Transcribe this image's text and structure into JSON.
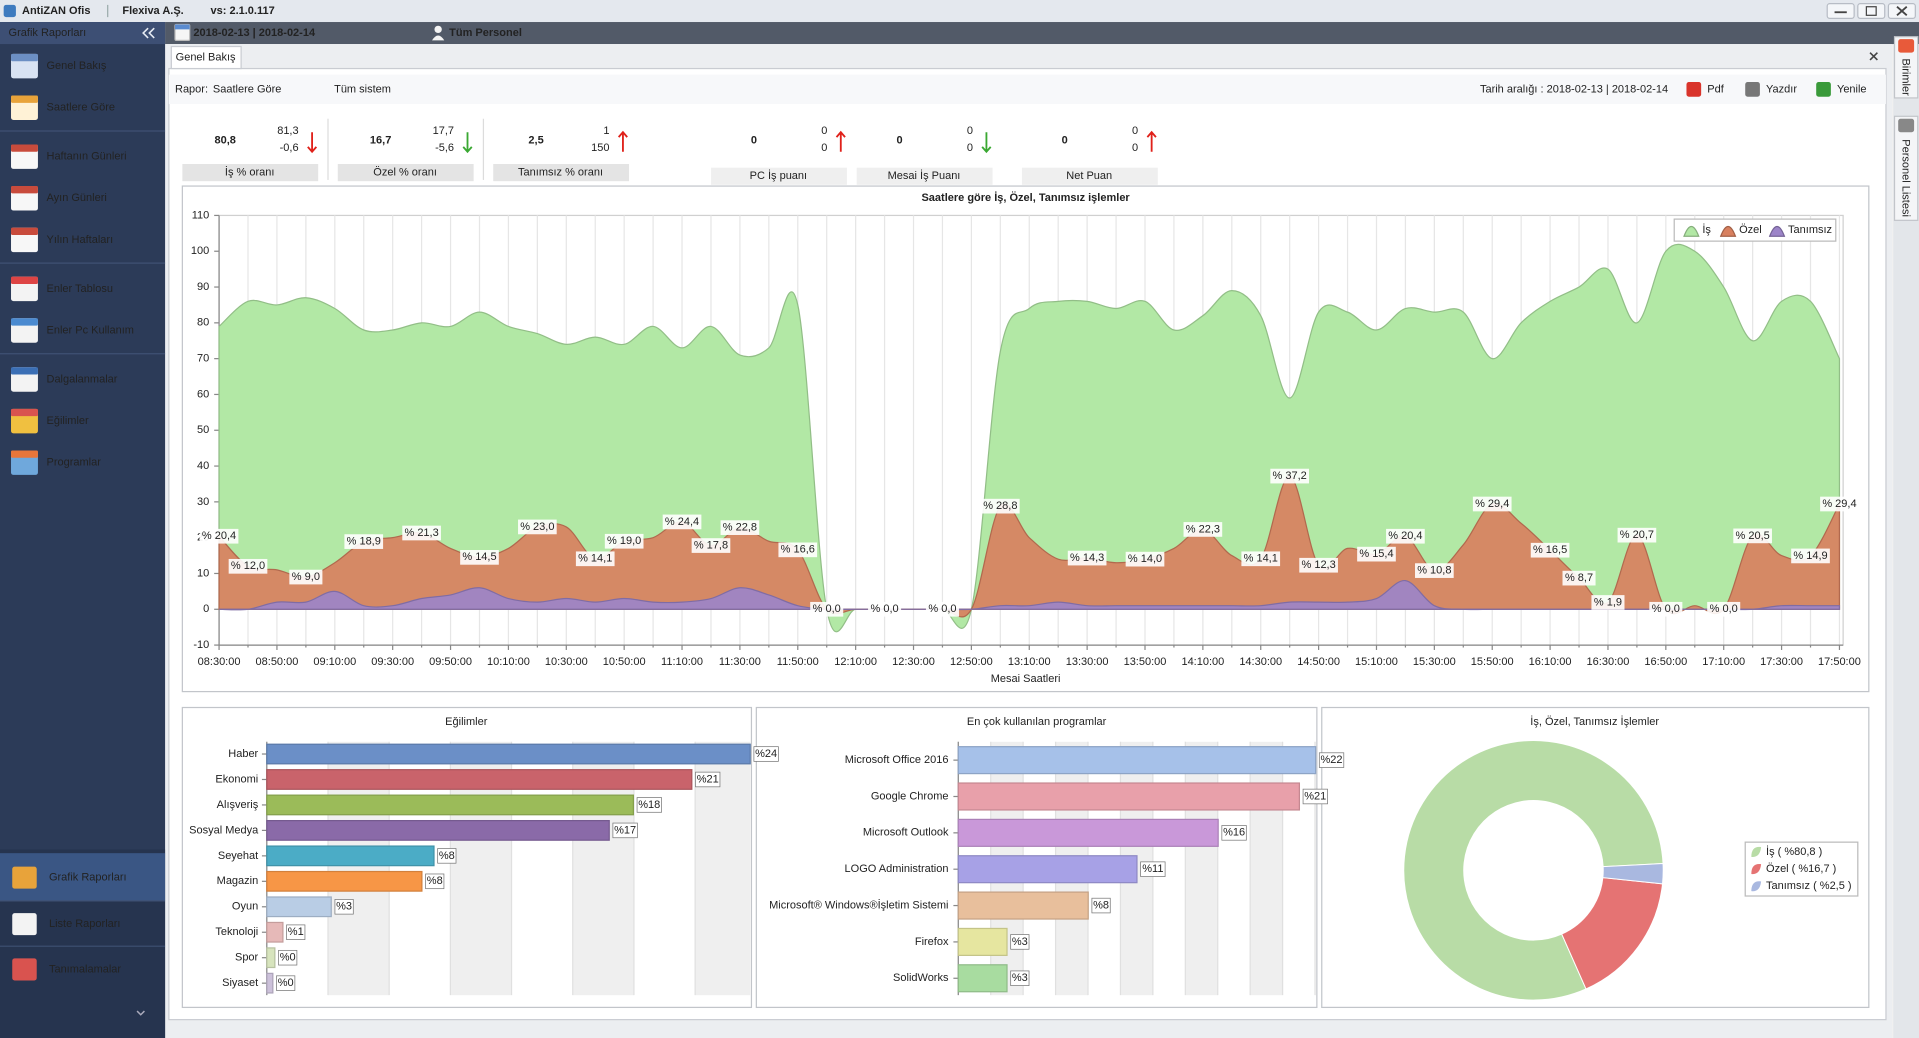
{
  "window": {
    "app": "AntiZAN Ofis",
    "company": "Flexiva A.Ş.",
    "version": "vs: 2.1.0.117"
  },
  "sidebar": {
    "title": "Grafik Raporları",
    "items": [
      "Genel Bakış",
      "Saatlere Göre",
      "Haftanın Günleri",
      "Ayın Günleri",
      "Yılın Haftaları",
      "Enler Tablosu",
      "Enler Pc Kullanım",
      "Dalgalanmalar",
      "Eğilimler",
      "Programlar"
    ],
    "bottom": [
      "Grafik Raporları",
      "Liste Raporları",
      "Tanımalamalar"
    ]
  },
  "toolbar": {
    "date_range": "2018-02-13 | 2018-02-14",
    "personnel": "Tüm Personel"
  },
  "tab": "Genel Bakış",
  "side_tabs": [
    "Birimler",
    "Personel Listesi"
  ],
  "report": {
    "label": "Rapor:",
    "name": "Saatlere Göre",
    "scope": "Tüm sistem",
    "date_range": "Tarih aralığı : 2018-02-13 | 2018-02-14",
    "buttons": [
      "Pdf",
      "Yazdır",
      "Yenile"
    ]
  },
  "kpis": [
    {
      "value": "80,8",
      "previous": "81,3",
      "change": "-0,6",
      "label": "İş % oranı",
      "color": "#8dc33b",
      "trend": "down",
      "trend_color": "#e0211a"
    },
    {
      "value": "16,7",
      "previous": "17,7",
      "change": "-5,6",
      "label": "Özel % oranı",
      "color": "#e0211a",
      "trend": "down",
      "trend_color": "#3aa832"
    },
    {
      "value": "2,5",
      "previous": "1",
      "change": "150",
      "label": "Tanımsız % oranı",
      "color": "#3e7bbf",
      "trend": "up",
      "trend_color": "#e0211a"
    },
    {
      "value": "0",
      "previous": "0",
      "change": "0",
      "label": "PC İş puanı",
      "color": "#b8b060",
      "trend": "up",
      "trend_color": "#e0211a"
    },
    {
      "value": "0",
      "previous": "0",
      "change": "0",
      "label": "Mesai İş Puanı",
      "color": "#8dc33b",
      "trend": "down",
      "trend_color": "#3aa832"
    },
    {
      "value": "0",
      "previous": "0",
      "change": "0",
      "label": "Net Puan",
      "color": "#f08a1e",
      "trend": "up",
      "trend_color": "#e0211a"
    }
  ],
  "chart_data": [
    {
      "type": "area",
      "title": "Saatlere göre İş, Özel, Tanımsız işlemler",
      "x_label": "Mesai Saatleri",
      "categories": [
        "08:30:00",
        null,
        "08:50:00",
        null,
        "09:10:00",
        null,
        "09:30:00",
        null,
        "09:50:00",
        null,
        "10:10:00",
        null,
        "10:30:00",
        null,
        "10:50:00",
        null,
        "11:10:00",
        null,
        "11:30:00",
        null,
        "11:50:00",
        null,
        "12:10:00",
        null,
        "12:30:00",
        null,
        "12:50:00",
        null,
        "13:10:00",
        null,
        "13:30:00",
        null,
        "13:50:00",
        null,
        "14:10:00",
        null,
        "14:30:00",
        null,
        "14:50:00",
        null,
        "15:10:00",
        null,
        "15:30:00",
        null,
        "15:50:00",
        null,
        "16:10:00",
        null,
        "16:30:00",
        null,
        "16:50:00",
        null,
        "17:10:00",
        null,
        "17:30:00",
        null,
        "17:50:00"
      ],
      "series": [
        {
          "name": "İş",
          "color": "#b2e8a5",
          "values": [
            79,
            86,
            85,
            87,
            84,
            78,
            78,
            80,
            79,
            83,
            79,
            77,
            74,
            76,
            74,
            79,
            73,
            79,
            71,
            73,
            85,
            0,
            0,
            0,
            0,
            0,
            0,
            72,
            84,
            86,
            86,
            84,
            86,
            78,
            82,
            89,
            82,
            59,
            83,
            83,
            78,
            84,
            83,
            83,
            70,
            80,
            86,
            90,
            95,
            80,
            100,
            100,
            90,
            75,
            86,
            86,
            70
          ]
        },
        {
          "name": "Özel",
          "color": "#d8805f",
          "values": [
            20.4,
            12.0,
            11,
            9.0,
            13,
            18.9,
            20,
            21.3,
            17,
            14.5,
            17,
            23.0,
            23,
            14.1,
            19.0,
            20,
            24.4,
            17.8,
            22.8,
            19,
            16.6,
            0,
            0,
            0,
            0,
            0,
            0,
            28.8,
            20,
            14,
            14.3,
            13,
            14.0,
            17,
            22.3,
            15,
            14.1,
            37.2,
            12.3,
            17,
            15.4,
            20.4,
            10.8,
            18,
            29.4,
            24,
            16.5,
            8.7,
            1.9,
            20.7,
            0.0,
            1,
            0.0,
            20.5,
            15,
            14.9,
            29.4
          ],
          "value_labels": [
            "% 20,4",
            "% 12,0",
            null,
            "% 9,0",
            null,
            "% 18,9",
            null,
            "% 21,3",
            null,
            "% 14,5",
            null,
            "% 23,0",
            null,
            "% 14,1",
            "% 19,0",
            null,
            "% 24,4",
            "% 17,8",
            "% 22,8",
            null,
            "% 16,6",
            "% 0,0",
            null,
            "% 0,0",
            null,
            "% 0,0",
            null,
            "% 28,8",
            null,
            null,
            "% 14,3",
            null,
            "% 14,0",
            null,
            "% 22,3",
            null,
            "% 14,1",
            "% 37,2",
            "% 12,3",
            null,
            "% 15,4",
            "% 20,4",
            "% 10,8",
            null,
            "% 29,4",
            null,
            "% 16,5",
            "% 8,7",
            "% 1,9",
            "% 20,7",
            "% 0,0",
            null,
            "% 0,0",
            "% 20,5",
            null,
            "% 14,9",
            "% 29,4"
          ]
        },
        {
          "name": "Tanımsız",
          "color": "#9c84c8",
          "values": [
            0,
            0,
            2,
            2,
            5,
            1,
            1,
            3,
            4,
            6,
            3,
            2,
            3,
            2,
            3,
            2,
            2,
            3,
            6,
            4,
            1,
            0,
            0,
            0,
            0,
            0,
            0,
            1,
            1,
            2,
            1,
            1,
            1,
            1,
            1,
            1,
            1,
            2,
            2,
            2,
            3,
            8,
            1,
            0,
            0,
            0,
            0,
            0,
            0,
            0,
            0,
            0,
            0,
            0,
            1,
            1,
            1
          ]
        }
      ],
      "ylim": [
        -10,
        110
      ],
      "yticks": [
        -10,
        0,
        10,
        20,
        30,
        40,
        50,
        60,
        70,
        80,
        90,
        100,
        110
      ],
      "legend": "upper right"
    },
    {
      "type": "hbar",
      "title": "Eğilimler",
      "categories": [
        "Haber",
        "Ekonomi",
        "Alışveriş",
        "Sosyal Medya",
        "Seyehat",
        "Magazin",
        "Oyun",
        "Teknoloji",
        "Spor",
        "Siyaset"
      ],
      "values": [
        24,
        21.1,
        18.2,
        17,
        8.3,
        7.7,
        3.2,
        0.8,
        0.4,
        0.3
      ],
      "value_labels": [
        "%24",
        "%21",
        "%18",
        "%17",
        "%8",
        "%8",
        "%3",
        "%1",
        "%0",
        "%0"
      ],
      "colors": [
        "#6b8fc7",
        "#c9636b",
        "#9bbb59",
        "#8a6aa8",
        "#4bacc6",
        "#f79646",
        "#b9cde5",
        "#e6b9b8",
        "#d7e4bd",
        "#ccc1da"
      ],
      "xlim": [
        0,
        24
      ]
    },
    {
      "type": "hbar",
      "title": "En çok kullanılan programlar",
      "categories": [
        "Microsoft Office 2016",
        "Google Chrome",
        "Microsoft Outlook",
        "LOGO Administration",
        "Microsoft® Windows®İşletim Sistemi",
        "Firefox",
        "SolidWorks"
      ],
      "values": [
        22,
        21,
        16,
        11,
        8,
        3,
        3
      ],
      "value_labels": [
        "%22",
        "%21",
        "%16",
        "%11",
        "%8",
        "%3",
        "%3"
      ],
      "colors": [
        "#a6c1e9",
        "#e8a0aa",
        "#c998d9",
        "#a7a1e6",
        "#e8bf9c",
        "#e6e6a0",
        "#a8dca0"
      ],
      "xlim": [
        0,
        22
      ]
    },
    {
      "type": "donut",
      "title": "İş, Özel, Tanımsız İşlemler",
      "labels": [
        "İş ( %80,8 )",
        "Özel ( %16,7 )",
        "Tanımsız ( %2,5 )"
      ],
      "values": [
        80.8,
        16.7,
        2.5
      ],
      "colors": [
        "#b8dca6",
        "#e57373",
        "#a9b8e0"
      ],
      "legend": "right"
    }
  ]
}
